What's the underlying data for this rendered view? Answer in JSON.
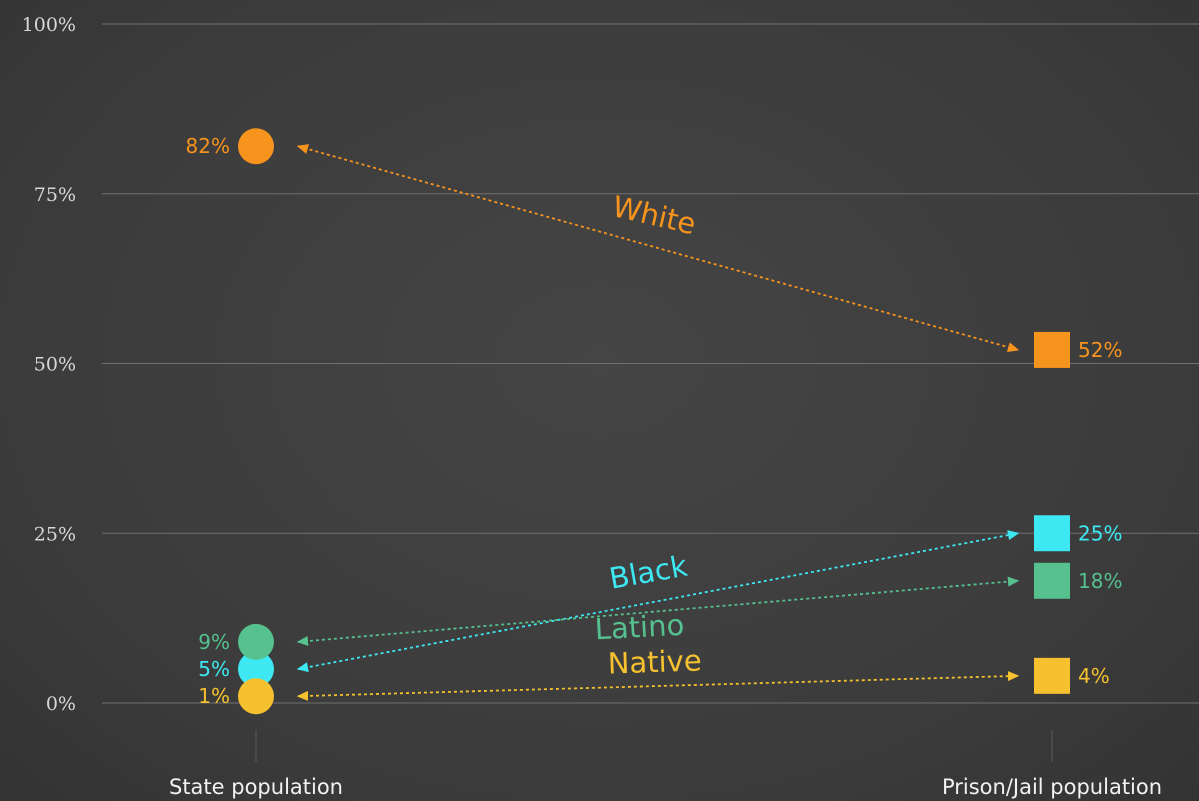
{
  "chart_data": {
    "type": "slope",
    "categories": [
      "State population",
      "Prison/Jail population"
    ],
    "y_ticks": [
      "0%",
      "25%",
      "50%",
      "75%",
      "100%"
    ],
    "ylim": [
      0,
      100
    ],
    "grid": true,
    "series": [
      {
        "name": "White",
        "values": [
          82,
          52
        ],
        "value_labels": [
          "82%",
          "52%"
        ],
        "color": "#f7941d"
      },
      {
        "name": "Black",
        "values": [
          5,
          25
        ],
        "value_labels": [
          "5%",
          "25%"
        ],
        "color": "#3ee8f2"
      },
      {
        "name": "Latino",
        "values": [
          9,
          18
        ],
        "value_labels": [
          "9%",
          "18%"
        ],
        "color": "#56c08e"
      },
      {
        "name": "Native",
        "values": [
          1,
          4
        ],
        "value_labels": [
          "1%",
          "4%"
        ],
        "color": "#f5c12e"
      }
    ],
    "colors": {
      "background": "#3c3c3c",
      "grid": "#707070",
      "text": "#f2f2f2"
    }
  }
}
